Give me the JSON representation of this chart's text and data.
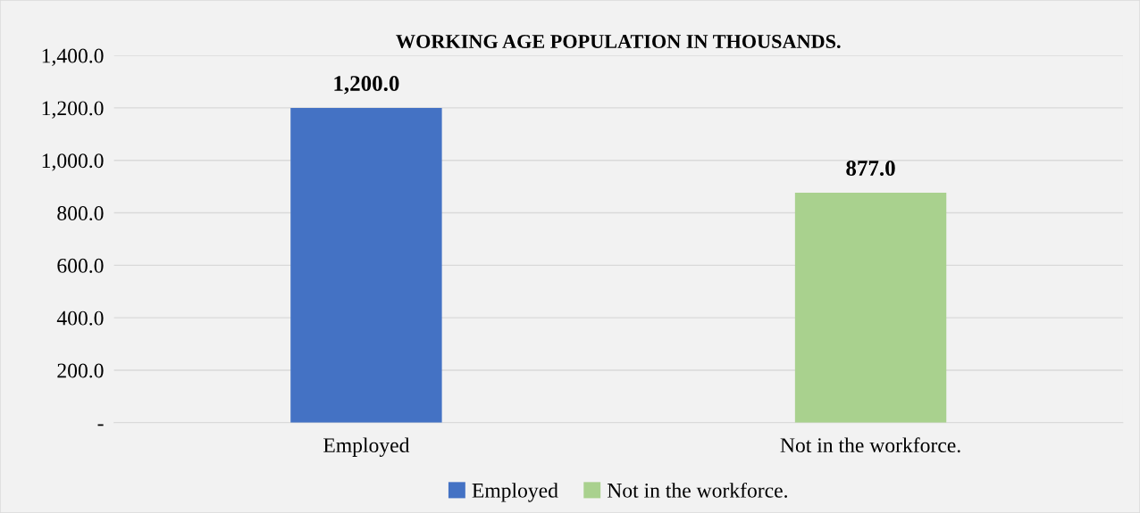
{
  "chart_data": {
    "type": "bar",
    "title": "WORKING AGE POPULATION IN THOUSANDS.",
    "categories": [
      "Employed",
      "Not in the workforce."
    ],
    "series": [
      {
        "name": "Employed",
        "color": "#4472c4",
        "values": [
          1200,
          null
        ],
        "value_labels": [
          "1,200.0",
          null
        ]
      },
      {
        "name": "Not in the workforce.",
        "color": "#a9d18e",
        "values": [
          null,
          877
        ],
        "value_labels": [
          null,
          "877.0"
        ]
      }
    ],
    "ylim": [
      0,
      1400
    ],
    "yticks": [
      {
        "value": 0,
        "label": "-"
      },
      {
        "value": 200,
        "label": "200.0"
      },
      {
        "value": 400,
        "label": "400.0"
      },
      {
        "value": 600,
        "label": "600.0"
      },
      {
        "value": 800,
        "label": "800.0"
      },
      {
        "value": 1000,
        "label": "1,000.0"
      },
      {
        "value": 1200,
        "label": "1,200.0"
      },
      {
        "value": 1400,
        "label": "1,400.0"
      }
    ],
    "grid": "y",
    "legend": "bottom"
  }
}
